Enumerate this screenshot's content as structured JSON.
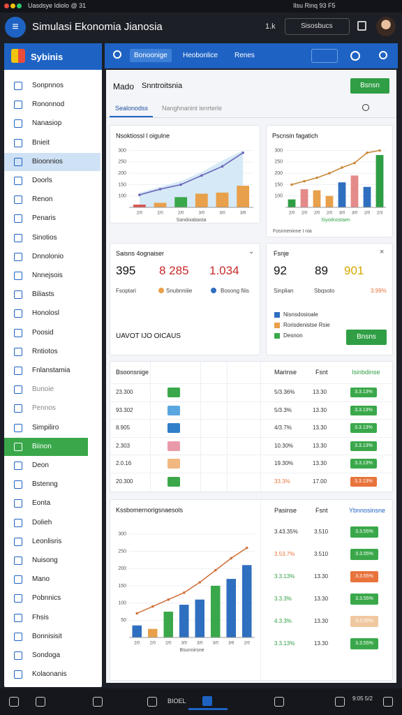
{
  "status_bar": {
    "left": "Uasdsye Idiolo @ 31",
    "right": "Ilsu Rinq 93 F5"
  },
  "app_bar": {
    "title": "Simulasi Ekonomia Jianosia",
    "zoom": "1.k",
    "search": "Sisosbucs"
  },
  "sidebar": {
    "title": "Sybinis",
    "items": [
      "Sonpnnos",
      "Rononnod",
      "Nanasiop",
      "Bnieit",
      "Bioonnios",
      "Doorls",
      "Renon",
      "Penaris",
      "Sinotios",
      "Dnnolonio",
      "Nnnejsois",
      "Biliasts",
      "Honolosl",
      "Poosid",
      "Rntiotos",
      "Fnlanstamia",
      "Bunoie",
      "Pennos",
      "Simpiliro",
      "Biinon",
      "Deon",
      "Bstenng",
      "Eonta",
      "Dolieh",
      "Leonlisris",
      "Nuisong",
      "Mano",
      "Pobnnics",
      "Fhsis",
      "Bonnisisit",
      "Sondoga",
      "Kolaonanis"
    ],
    "selected": [
      4,
      19
    ]
  },
  "tabs": [
    "Bonoonige",
    "Heobonlice",
    "Renes"
  ],
  "page": {
    "title": "Mado",
    "subtitle": "Snntroitsnia",
    "button": "Bsnsn",
    "subtabs": [
      "Sealonodss",
      "Nanghnanint lenrterle"
    ]
  },
  "chart_left": {
    "type": "bar-line",
    "title": "Nsoktiossl l oigulne",
    "categories": [
      "2/0",
      "2/0",
      "2/0",
      "3/0",
      "3/0",
      "3/6"
    ],
    "xlabel": "Sandoiabasta",
    "ylim": [
      50,
      320
    ],
    "yticks": [
      100,
      150,
      200,
      250,
      300
    ],
    "bars": {
      "values": [
        62,
        70,
        95,
        110,
        115,
        145
      ],
      "colors": [
        "#d9534f",
        "#e8a04a",
        "#3aa84a",
        "#e8a04a",
        "#e8a04a",
        "#e8a04a"
      ]
    },
    "line": {
      "values": [
        105,
        130,
        150,
        190,
        230,
        290
      ],
      "color": "#6a66b8"
    },
    "area": {
      "values": [
        115,
        140,
        165,
        205,
        255,
        300
      ],
      "color": "#d6e9f6"
    }
  },
  "chart_right": {
    "type": "bar-line",
    "title": "Pscnsin fagatich",
    "categories": [
      "2/0",
      "2/0",
      "2/0",
      "2/0",
      "3/0",
      "3/0",
      "2/0",
      "2/3"
    ],
    "xlabel": "Siyoilnostaen",
    "footer": "Fosnneninne I nia",
    "ylim": [
      50,
      320
    ],
    "yticks": [
      100,
      150,
      200,
      250,
      300
    ],
    "bars": {
      "values": [
        85,
        130,
        125,
        100,
        160,
        190,
        140,
        280
      ],
      "colors": [
        "#2f9e44",
        "#e58a8a",
        "#e8a04a",
        "#e8a04a",
        "#2f6fc0",
        "#e58a8a",
        "#2f6fc0",
        "#2f9e44"
      ]
    },
    "line": {
      "values": [
        150,
        165,
        180,
        200,
        225,
        245,
        290,
        300
      ],
      "color": "#c98a3a"
    }
  },
  "stats_left": {
    "title": "Saisns 4ognaiser",
    "values": [
      "395",
      "8 285",
      "1.034"
    ],
    "labels": [
      "Fsoptari",
      "Snubnniiie",
      "Bosong fiiis"
    ],
    "heading": "UAVOT IJO OICAUS"
  },
  "stats_right": {
    "title": "Fsnje",
    "values": [
      "92",
      "89",
      "901"
    ],
    "labels": [
      "Sinplian",
      "Sbqsoto",
      "3.99%"
    ],
    "legend": [
      "Nisnsdosioale",
      "Rorisdenistse Rsie",
      "Desnon"
    ],
    "legend_colors": [
      "#2f6fc0",
      "#e8a04a",
      "#3aa84a"
    ],
    "button": "Bnsns"
  },
  "table": {
    "headers": [
      "Bsoonsnige",
      "Marinse",
      "Fsnt",
      "Isinbdinse"
    ],
    "rows": [
      [
        "23.300",
        "5/3.36%",
        "13.30",
        "3.3.13%"
      ],
      [
        "93.302",
        "5/3.3%",
        "13.30",
        "3.3.13%"
      ],
      [
        "8.905",
        "4/3.7%",
        "13.30",
        "3.3.13%"
      ],
      [
        "2.303",
        "10.30%",
        "13.30",
        "3.3.13%"
      ],
      [
        "2.0.16",
        "19.30%",
        "13.30",
        "3.3.13%"
      ],
      [
        "20.300",
        "33.3%",
        "17.00",
        "3.3.13%"
      ]
    ],
    "icon_colors": [
      "#3aa84a",
      "#5aa6e0",
      "#2f7fc8",
      "#e89aa8",
      "#f0b880",
      "#3aa84a"
    ],
    "badge_colors": [
      "#3aa84a",
      "#3aa84a",
      "#3aa84a",
      "#3aa84a",
      "#3aa84a",
      "#e8743c"
    ]
  },
  "chart_bottom": {
    "type": "bar-line",
    "title": "Kssbomernorigsnaesols",
    "categories": [
      "2/0",
      "2/0",
      "2/0",
      "3/0",
      "3/0",
      "3/0",
      "3/6",
      "2/0"
    ],
    "xlabel": "Bsunnirsne",
    "ylim": [
      0,
      320
    ],
    "yticks": [
      50,
      100,
      150,
      200,
      250,
      300
    ],
    "bars": {
      "values": [
        35,
        25,
        75,
        95,
        110,
        150,
        170,
        210
      ],
      "colors": [
        "#2f6fc0",
        "#e8a04a",
        "#3aa84a",
        "#2f6fc0",
        "#2f6fc0",
        "#3aa84a",
        "#2f6fc0",
        "#2f6fc0"
      ]
    },
    "line": {
      "values": [
        70,
        90,
        110,
        130,
        160,
        195,
        230,
        260
      ],
      "color": "#d2733c"
    }
  },
  "side_table": {
    "headers": [
      "Pasinse",
      "Fsnt",
      "Ybnnosinsne"
    ],
    "rows": [
      [
        "3.43.35%",
        "3.510",
        "3.3.55%"
      ],
      [
        "3.53.7%",
        "3.510",
        "3.3.55%"
      ],
      [
        "3.3.13%",
        "13.30",
        "3.3.55%"
      ],
      [
        "3.3.3%",
        "13.30",
        "3.3.55%"
      ],
      [
        "4.3.3%",
        "13.30",
        "3.3.55%"
      ],
      [
        "3.3.13%",
        "13.30",
        "3.3.55%"
      ]
    ],
    "badge_colors": [
      "#3aa84a",
      "#3aa84a",
      "#e8743c",
      "#3aa84a",
      "#f0c8a0",
      "#3aa84a"
    ]
  },
  "taskbar": {
    "label": "BIOEL",
    "time": "9:05 5/2"
  }
}
